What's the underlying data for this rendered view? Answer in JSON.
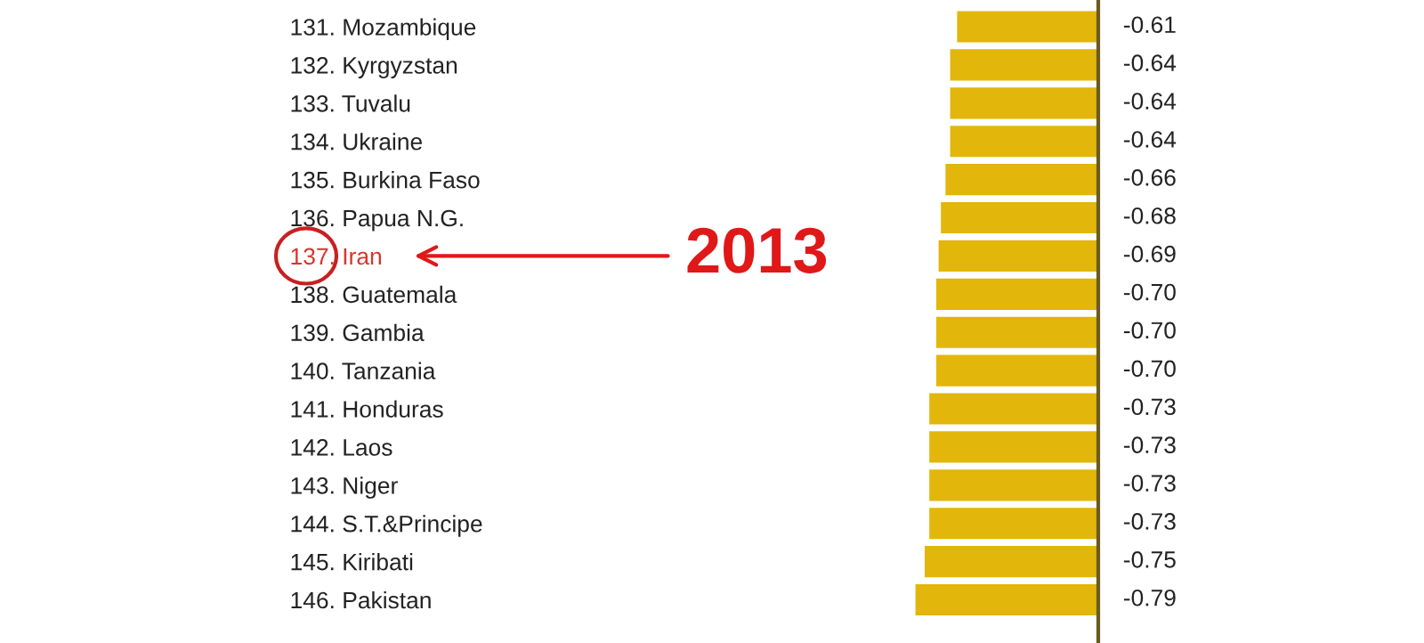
{
  "chart_data": {
    "type": "bar",
    "orientation": "horizontal",
    "tick_labels": "y",
    "categories": [
      "131. Mozambique",
      "132. Kyrgyzstan",
      "133. Tuvalu",
      "134. Ukraine",
      "135. Burkina Faso",
      "136. Papua N.G.",
      "137. Iran",
      "138. Guatemala",
      "139. Gambia",
      "140. Tanzania",
      "141. Honduras",
      "142. Laos",
      "143. Niger",
      "144. S.T.&Principe",
      "145. Kiribati",
      "146. Pakistan"
    ],
    "values": [
      -0.61,
      -0.64,
      -0.64,
      -0.64,
      -0.66,
      -0.68,
      -0.69,
      -0.7,
      -0.7,
      -0.7,
      -0.73,
      -0.73,
      -0.73,
      -0.73,
      -0.75,
      -0.79
    ],
    "value_labels": [
      "-0.61",
      "-0.64",
      "-0.64",
      "-0.64",
      "-0.66",
      "-0.68",
      "-0.69",
      "-0.70",
      "-0.70",
      "-0.70",
      "-0.73",
      "-0.73",
      "-0.73",
      "-0.73",
      "-0.75",
      "-0.79"
    ],
    "color": "#e2b60a",
    "grid": false,
    "legend": false,
    "annotations": [
      "2013"
    ]
  }
}
